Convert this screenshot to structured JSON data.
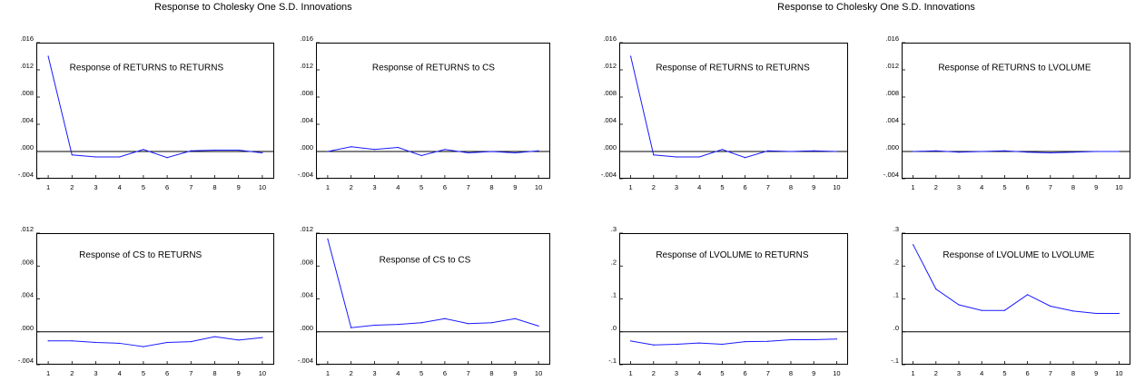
{
  "titles": [
    "Response to Cholesky One S.D. Innovations",
    "Response to Cholesky One S.D. Innovations"
  ],
  "colors": {
    "line": "#1a1aff",
    "frame": "#000000",
    "zero_line": "#000000"
  },
  "chart_data": [
    {
      "type": "line",
      "title": "Response of RETURNS to RETURNS",
      "x": [
        1,
        2,
        3,
        4,
        5,
        6,
        7,
        8,
        9,
        10
      ],
      "values": [
        0.014,
        -0.0005,
        -0.0008,
        -0.0008,
        0.0003,
        -0.0009,
        0.0001,
        0.0002,
        0.0002,
        -0.0002
      ],
      "ylim": [
        -0.004,
        0.016
      ],
      "yticks": [
        ".016",
        ".012",
        ".008",
        ".004",
        ".000",
        "-.004"
      ],
      "ytick_values": [
        0.016,
        0.012,
        0.008,
        0.004,
        0.0,
        -0.004
      ]
    },
    {
      "type": "line",
      "title": "Response of RETURNS to CS",
      "x": [
        1,
        2,
        3,
        4,
        5,
        6,
        7,
        8,
        9,
        10
      ],
      "values": [
        0.0,
        0.0007,
        0.0003,
        0.0006,
        -0.0006,
        0.0003,
        -0.0002,
        0.0,
        -0.0002,
        0.0001
      ],
      "ylim": [
        -0.004,
        0.016
      ],
      "yticks": [
        ".016",
        ".012",
        ".008",
        ".004",
        ".000",
        "-.004"
      ],
      "ytick_values": [
        0.016,
        0.012,
        0.008,
        0.004,
        0.0,
        -0.004
      ]
    },
    {
      "type": "line",
      "title": "Response of RETURNS to RETURNS",
      "x": [
        1,
        2,
        3,
        4,
        5,
        6,
        7,
        8,
        9,
        10
      ],
      "values": [
        0.014,
        -0.0005,
        -0.0008,
        -0.0008,
        0.0003,
        -0.0009,
        0.0001,
        0.0,
        0.0001,
        0.0
      ],
      "ylim": [
        -0.004,
        0.016
      ],
      "yticks": [
        ".016",
        ".012",
        ".008",
        ".004",
        ".000",
        "-.004"
      ],
      "ytick_values": [
        0.016,
        0.012,
        0.008,
        0.004,
        0.0,
        -0.004
      ]
    },
    {
      "type": "line",
      "title": "Response of RETURNS to LVOLUME",
      "x": [
        1,
        2,
        3,
        4,
        5,
        6,
        7,
        8,
        9,
        10
      ],
      "values": [
        0.0,
        0.0001,
        -0.0001,
        0.0,
        0.0001,
        -0.0001,
        -0.0002,
        -0.0001,
        0.0,
        0.0
      ],
      "ylim": [
        -0.004,
        0.016
      ],
      "yticks": [
        ".016",
        ".012",
        ".008",
        ".004",
        ".000",
        "-.004"
      ],
      "ytick_values": [
        0.016,
        0.012,
        0.008,
        0.004,
        0.0,
        -0.004
      ]
    },
    {
      "type": "line",
      "title": "Response of CS to RETURNS",
      "x": [
        1,
        2,
        3,
        4,
        5,
        6,
        7,
        8,
        9,
        10
      ],
      "values": [
        -0.0011,
        -0.0011,
        -0.0013,
        -0.0014,
        -0.0018,
        -0.0013,
        -0.0012,
        -0.0006,
        -0.001,
        -0.0007
      ],
      "ylim": [
        -0.004,
        0.012
      ],
      "yticks": [
        ".012",
        ".008",
        ".004",
        ".000",
        "-.004"
      ],
      "ytick_values": [
        0.012,
        0.008,
        0.004,
        0.0,
        -0.004
      ]
    },
    {
      "type": "line",
      "title": "Response of CS to CS",
      "x": [
        1,
        2,
        3,
        4,
        5,
        6,
        7,
        8,
        9,
        10
      ],
      "values": [
        0.0113,
        0.0005,
        0.0008,
        0.0009,
        0.0011,
        0.0016,
        0.001,
        0.0011,
        0.0016,
        0.0007
      ],
      "ylim": [
        -0.004,
        0.012
      ],
      "yticks": [
        ".012",
        ".008",
        ".004",
        ".000",
        "-.004"
      ],
      "ytick_values": [
        0.012,
        0.008,
        0.004,
        0.0,
        -0.004
      ]
    },
    {
      "type": "line",
      "title": "Response of LVOLUME to RETURNS",
      "x": [
        1,
        2,
        3,
        4,
        5,
        6,
        7,
        8,
        9,
        10
      ],
      "values": [
        -0.028,
        -0.04,
        -0.038,
        -0.034,
        -0.038,
        -0.03,
        -0.029,
        -0.024,
        -0.024,
        -0.022
      ],
      "ylim": [
        -0.1,
        0.3
      ],
      "yticks": [
        ".3",
        ".2",
        ".1",
        ".0",
        "-.1"
      ],
      "ytick_values": [
        0.3,
        0.2,
        0.1,
        0.0,
        -0.1
      ]
    },
    {
      "type": "line",
      "title": "Response of LVOLUME to LVOLUME",
      "x": [
        1,
        2,
        3,
        4,
        5,
        6,
        7,
        8,
        9,
        10
      ],
      "values": [
        0.265,
        0.13,
        0.082,
        0.065,
        0.065,
        0.113,
        0.078,
        0.063,
        0.056,
        0.056
      ],
      "ylim": [
        -0.1,
        0.3
      ],
      "yticks": [
        ".3",
        ".2",
        ".1",
        ".0",
        "-.1"
      ],
      "ytick_values": [
        0.3,
        0.2,
        0.1,
        0.0,
        -0.1
      ]
    }
  ]
}
